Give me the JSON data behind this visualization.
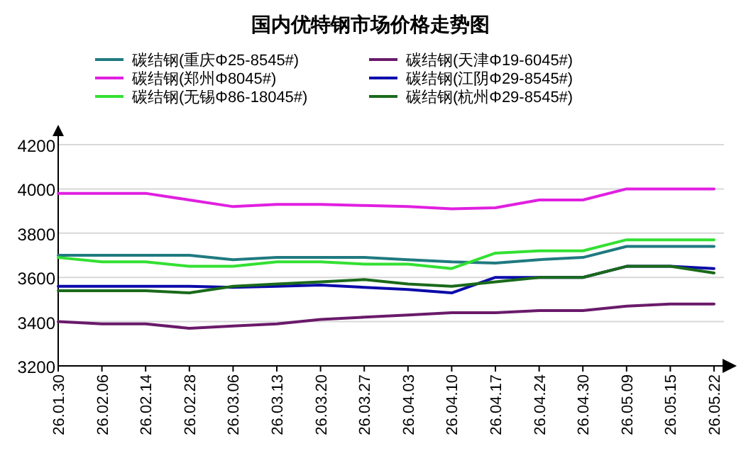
{
  "chart_data": {
    "type": "line",
    "title": "国内优特钢市场价格走势图",
    "categories": [
      "26.01.30",
      "26.02.06",
      "26.02.14",
      "26.02.28",
      "26.03.06",
      "26.03.13",
      "26.03.20",
      "26.03.27",
      "26.04.03",
      "26.04.10",
      "26.04.17",
      "26.04.24",
      "26.04.30",
      "26.05.09",
      "26.05.15",
      "26.05.22"
    ],
    "series": [
      {
        "name": "碳结钢(重庆Φ25-8545#)",
        "color": "#1f7a80",
        "values": [
          3700,
          3700,
          3700,
          3700,
          3680,
          3690,
          3690,
          3690,
          3680,
          3670,
          3665,
          3680,
          3690,
          3740,
          3740,
          3740
        ]
      },
      {
        "name": "碳结钢(郑州Φ8045#)",
        "color": "#e020e0",
        "values": [
          3980,
          3980,
          3980,
          3950,
          3920,
          3930,
          3930,
          3925,
          3920,
          3910,
          3915,
          3950,
          3950,
          4000,
          4000,
          4000
        ]
      },
      {
        "name": "碳结钢(无锡Φ86-18045#)",
        "color": "#33e033",
        "values": [
          3690,
          3670,
          3670,
          3650,
          3650,
          3670,
          3670,
          3660,
          3660,
          3640,
          3710,
          3720,
          3720,
          3770,
          3770,
          3770
        ]
      },
      {
        "name": "碳结钢(天津Φ19-6045#)",
        "color": "#6a1a6a",
        "values": [
          3400,
          3390,
          3390,
          3370,
          3380,
          3390,
          3410,
          3420,
          3430,
          3440,
          3440,
          3450,
          3450,
          3470,
          3480,
          3480
        ]
      },
      {
        "name": "碳结钢(江阴Φ29-8545#)",
        "color": "#0a0aaa",
        "values": [
          3560,
          3560,
          3560,
          3560,
          3555,
          3560,
          3565,
          3555,
          3545,
          3530,
          3600,
          3600,
          3600,
          3650,
          3650,
          3640
        ]
      },
      {
        "name": "碳结钢(杭州Φ29-8545#)",
        "color": "#1a6a1a",
        "values": [
          3540,
          3540,
          3540,
          3530,
          3560,
          3570,
          3580,
          3590,
          3570,
          3560,
          3580,
          3600,
          3600,
          3650,
          3650,
          3620
        ]
      }
    ],
    "ylim": [
      3200,
      4200
    ],
    "yticks": [
      3200,
      3400,
      3600,
      3800,
      4000,
      4200
    ],
    "grid": "y",
    "legend": "top"
  }
}
